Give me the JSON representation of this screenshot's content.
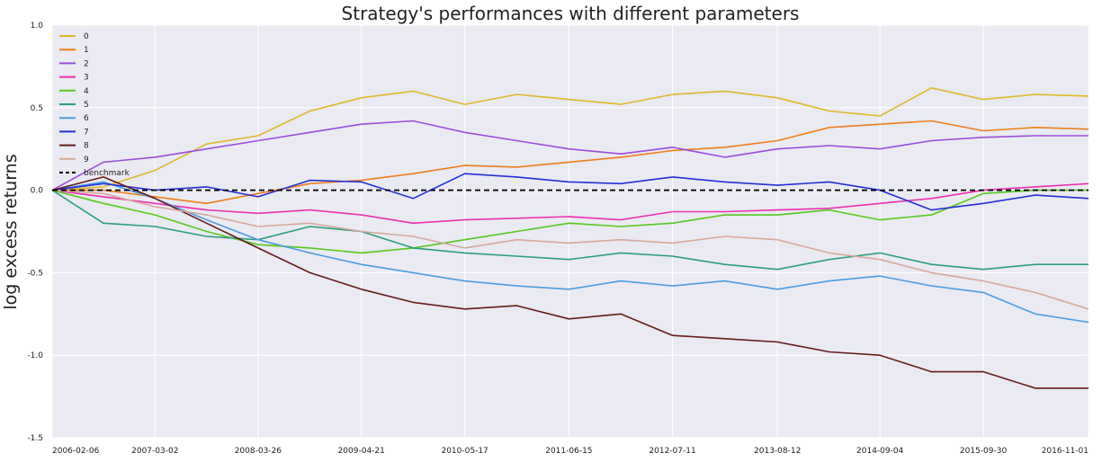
{
  "chart_data": {
    "type": "line",
    "title": "Strategy's performances with different parameters",
    "xlabel": "",
    "ylabel": "log excess returns",
    "ylim": [
      -1.5,
      1.0
    ],
    "yticks": [
      1.0,
      0.5,
      0.0,
      -0.5,
      -1.0,
      -1.5
    ],
    "ytick_labels": [
      "1.0",
      "0.5",
      "0.0",
      "-0.5",
      "-1.0",
      "-1.5"
    ],
    "xlim": [
      "2006-02-06",
      "2016-11-01"
    ],
    "xticks": [
      "2006-02-06",
      "2007-03-02",
      "2008-03-26",
      "2009-04-21",
      "2010-05-17",
      "2011-06-15",
      "2012-07-11",
      "2013-08-12",
      "2014-09-04",
      "2015-09-30",
      "2016-11-01"
    ],
    "grid": true,
    "legend_position": "top-left",
    "background_color": "#eaeaf2",
    "x": [
      "2006-02-06",
      "2006-08-19",
      "2007-03-02",
      "2007-09-13",
      "2008-03-26",
      "2008-10-08",
      "2009-04-21",
      "2009-11-03",
      "2010-05-17",
      "2010-11-30",
      "2011-06-15",
      "2011-12-28",
      "2012-07-11",
      "2013-01-25",
      "2013-08-12",
      "2014-02-24",
      "2014-09-04",
      "2015-03-18",
      "2015-09-30",
      "2016-04-14",
      "2016-11-01"
    ],
    "series": [
      {
        "name": "0",
        "color": "#e0b72b",
        "values": [
          0.0,
          0.02,
          0.12,
          0.28,
          0.33,
          0.48,
          0.56,
          0.6,
          0.52,
          0.58,
          0.55,
          0.52,
          0.58,
          0.6,
          0.56,
          0.48,
          0.45,
          0.62,
          0.55,
          0.58,
          0.57
        ]
      },
      {
        "name": "1",
        "color": "#ee7d19",
        "values": [
          0.0,
          0.0,
          -0.04,
          -0.08,
          -0.02,
          0.04,
          0.06,
          0.1,
          0.15,
          0.14,
          0.17,
          0.2,
          0.24,
          0.26,
          0.3,
          0.38,
          0.4,
          0.42,
          0.36,
          0.38,
          0.37
        ]
      },
      {
        "name": "2",
        "color": "#9b4ddb",
        "values": [
          0.0,
          0.17,
          0.2,
          0.25,
          0.3,
          0.35,
          0.4,
          0.42,
          0.35,
          0.3,
          0.25,
          0.22,
          0.26,
          0.2,
          0.25,
          0.27,
          0.25,
          0.3,
          0.32,
          0.33,
          0.33
        ]
      },
      {
        "name": "3",
        "color": "#ec2fb0",
        "values": [
          0.0,
          -0.04,
          -0.08,
          -0.12,
          -0.14,
          -0.12,
          -0.15,
          -0.2,
          -0.18,
          -0.17,
          -0.16,
          -0.18,
          -0.13,
          -0.13,
          -0.12,
          -0.11,
          -0.08,
          -0.05,
          0.0,
          0.02,
          0.04
        ]
      },
      {
        "name": "4",
        "color": "#56c81e",
        "values": [
          0.0,
          -0.08,
          -0.15,
          -0.25,
          -0.33,
          -0.35,
          -0.38,
          -0.35,
          -0.3,
          -0.25,
          -0.2,
          -0.22,
          -0.2,
          -0.15,
          -0.15,
          -0.12,
          -0.18,
          -0.15,
          -0.02,
          0.0,
          0.0
        ]
      },
      {
        "name": "5",
        "color": "#2a9f7d",
        "values": [
          0.0,
          -0.2,
          -0.22,
          -0.28,
          -0.3,
          -0.22,
          -0.25,
          -0.35,
          -0.38,
          -0.4,
          -0.42,
          -0.38,
          -0.4,
          -0.45,
          -0.48,
          -0.42,
          -0.38,
          -0.45,
          -0.48,
          -0.45,
          -0.45
        ]
      },
      {
        "name": "6",
        "color": "#4a9de0",
        "values": [
          0.0,
          0.05,
          -0.05,
          -0.18,
          -0.3,
          -0.38,
          -0.45,
          -0.5,
          -0.55,
          -0.58,
          -0.6,
          -0.55,
          -0.58,
          -0.55,
          -0.6,
          -0.55,
          -0.52,
          -0.58,
          -0.62,
          -0.75,
          -0.8
        ]
      },
      {
        "name": "7",
        "color": "#2630d6",
        "values": [
          0.0,
          0.04,
          0.0,
          0.02,
          -0.04,
          0.06,
          0.05,
          -0.05,
          0.1,
          0.08,
          0.05,
          0.04,
          0.08,
          0.05,
          0.03,
          0.05,
          0.0,
          -0.12,
          -0.08,
          -0.03,
          -0.05
        ]
      },
      {
        "name": "8",
        "color": "#661c1c",
        "values": [
          0.0,
          0.08,
          -0.05,
          -0.2,
          -0.35,
          -0.5,
          -0.6,
          -0.68,
          -0.72,
          -0.7,
          -0.78,
          -0.75,
          -0.88,
          -0.9,
          -0.92,
          -0.98,
          -1.0,
          -1.1,
          -1.1,
          -1.2,
          -1.2
        ]
      },
      {
        "name": "9",
        "color": "#d7a89d",
        "values": [
          0.0,
          -0.02,
          -0.1,
          -0.15,
          -0.22,
          -0.2,
          -0.25,
          -0.28,
          -0.35,
          -0.3,
          -0.32,
          -0.3,
          -0.32,
          -0.28,
          -0.3,
          -0.38,
          -0.42,
          -0.5,
          -0.55,
          -0.62,
          -0.72
        ]
      },
      {
        "name": "benchmark",
        "color": "#000000",
        "dashed": true,
        "values": [
          0.0,
          0.0,
          0.0,
          0.0,
          0.0,
          0.0,
          0.0,
          0.0,
          0.0,
          0.0,
          0.0,
          0.0,
          0.0,
          0.0,
          0.0,
          0.0,
          0.0,
          0.0,
          0.0,
          0.0,
          0.0
        ]
      }
    ]
  }
}
